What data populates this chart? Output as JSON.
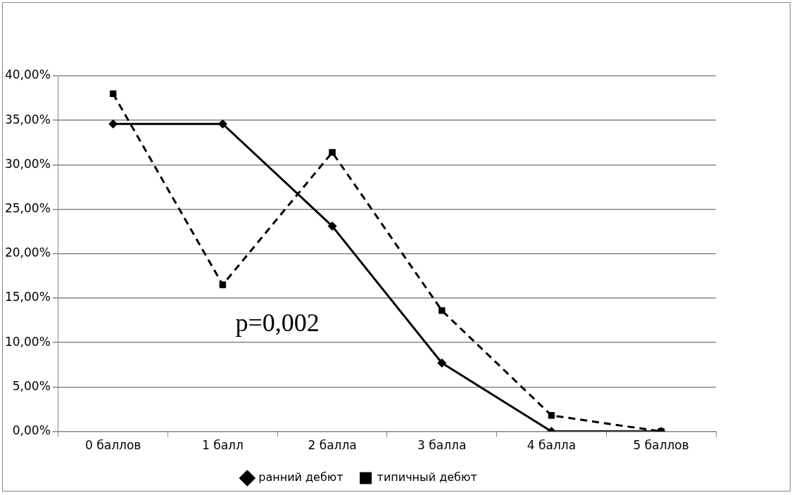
{
  "chart_data": {
    "type": "line",
    "categories": [
      "0 баллов",
      "1 балл",
      "2 балла",
      "3 балла",
      "4 балла",
      "5 баллов"
    ],
    "series": [
      {
        "name": "ранний дебют",
        "color": "#000000",
        "marker": "diamond",
        "line_style": "solid",
        "values": [
          34.6,
          34.6,
          23.1,
          7.7,
          0,
          0
        ]
      },
      {
        "name": "типичный дебют",
        "color": "#000000",
        "marker": "square",
        "line_style": "dashed",
        "values": [
          38.0,
          16.5,
          31.4,
          13.6,
          1.8,
          0
        ]
      }
    ],
    "ylim": [
      0,
      40
    ],
    "yticks": [
      {
        "value": 0,
        "label": "0,00%"
      },
      {
        "value": 5,
        "label": "5,00%"
      },
      {
        "value": 10,
        "label": "10,00%"
      },
      {
        "value": 15,
        "label": "15,00%"
      },
      {
        "value": 20,
        "label": "20,00%"
      },
      {
        "value": 25,
        "label": "25,00%"
      },
      {
        "value": 30,
        "label": "30,00%"
      },
      {
        "value": 35,
        "label": "35,00%"
      },
      {
        "value": 40,
        "label": "40,00%"
      }
    ],
    "grid": "y",
    "legend": "bottom",
    "annotations": [
      "p=0,002"
    ]
  }
}
